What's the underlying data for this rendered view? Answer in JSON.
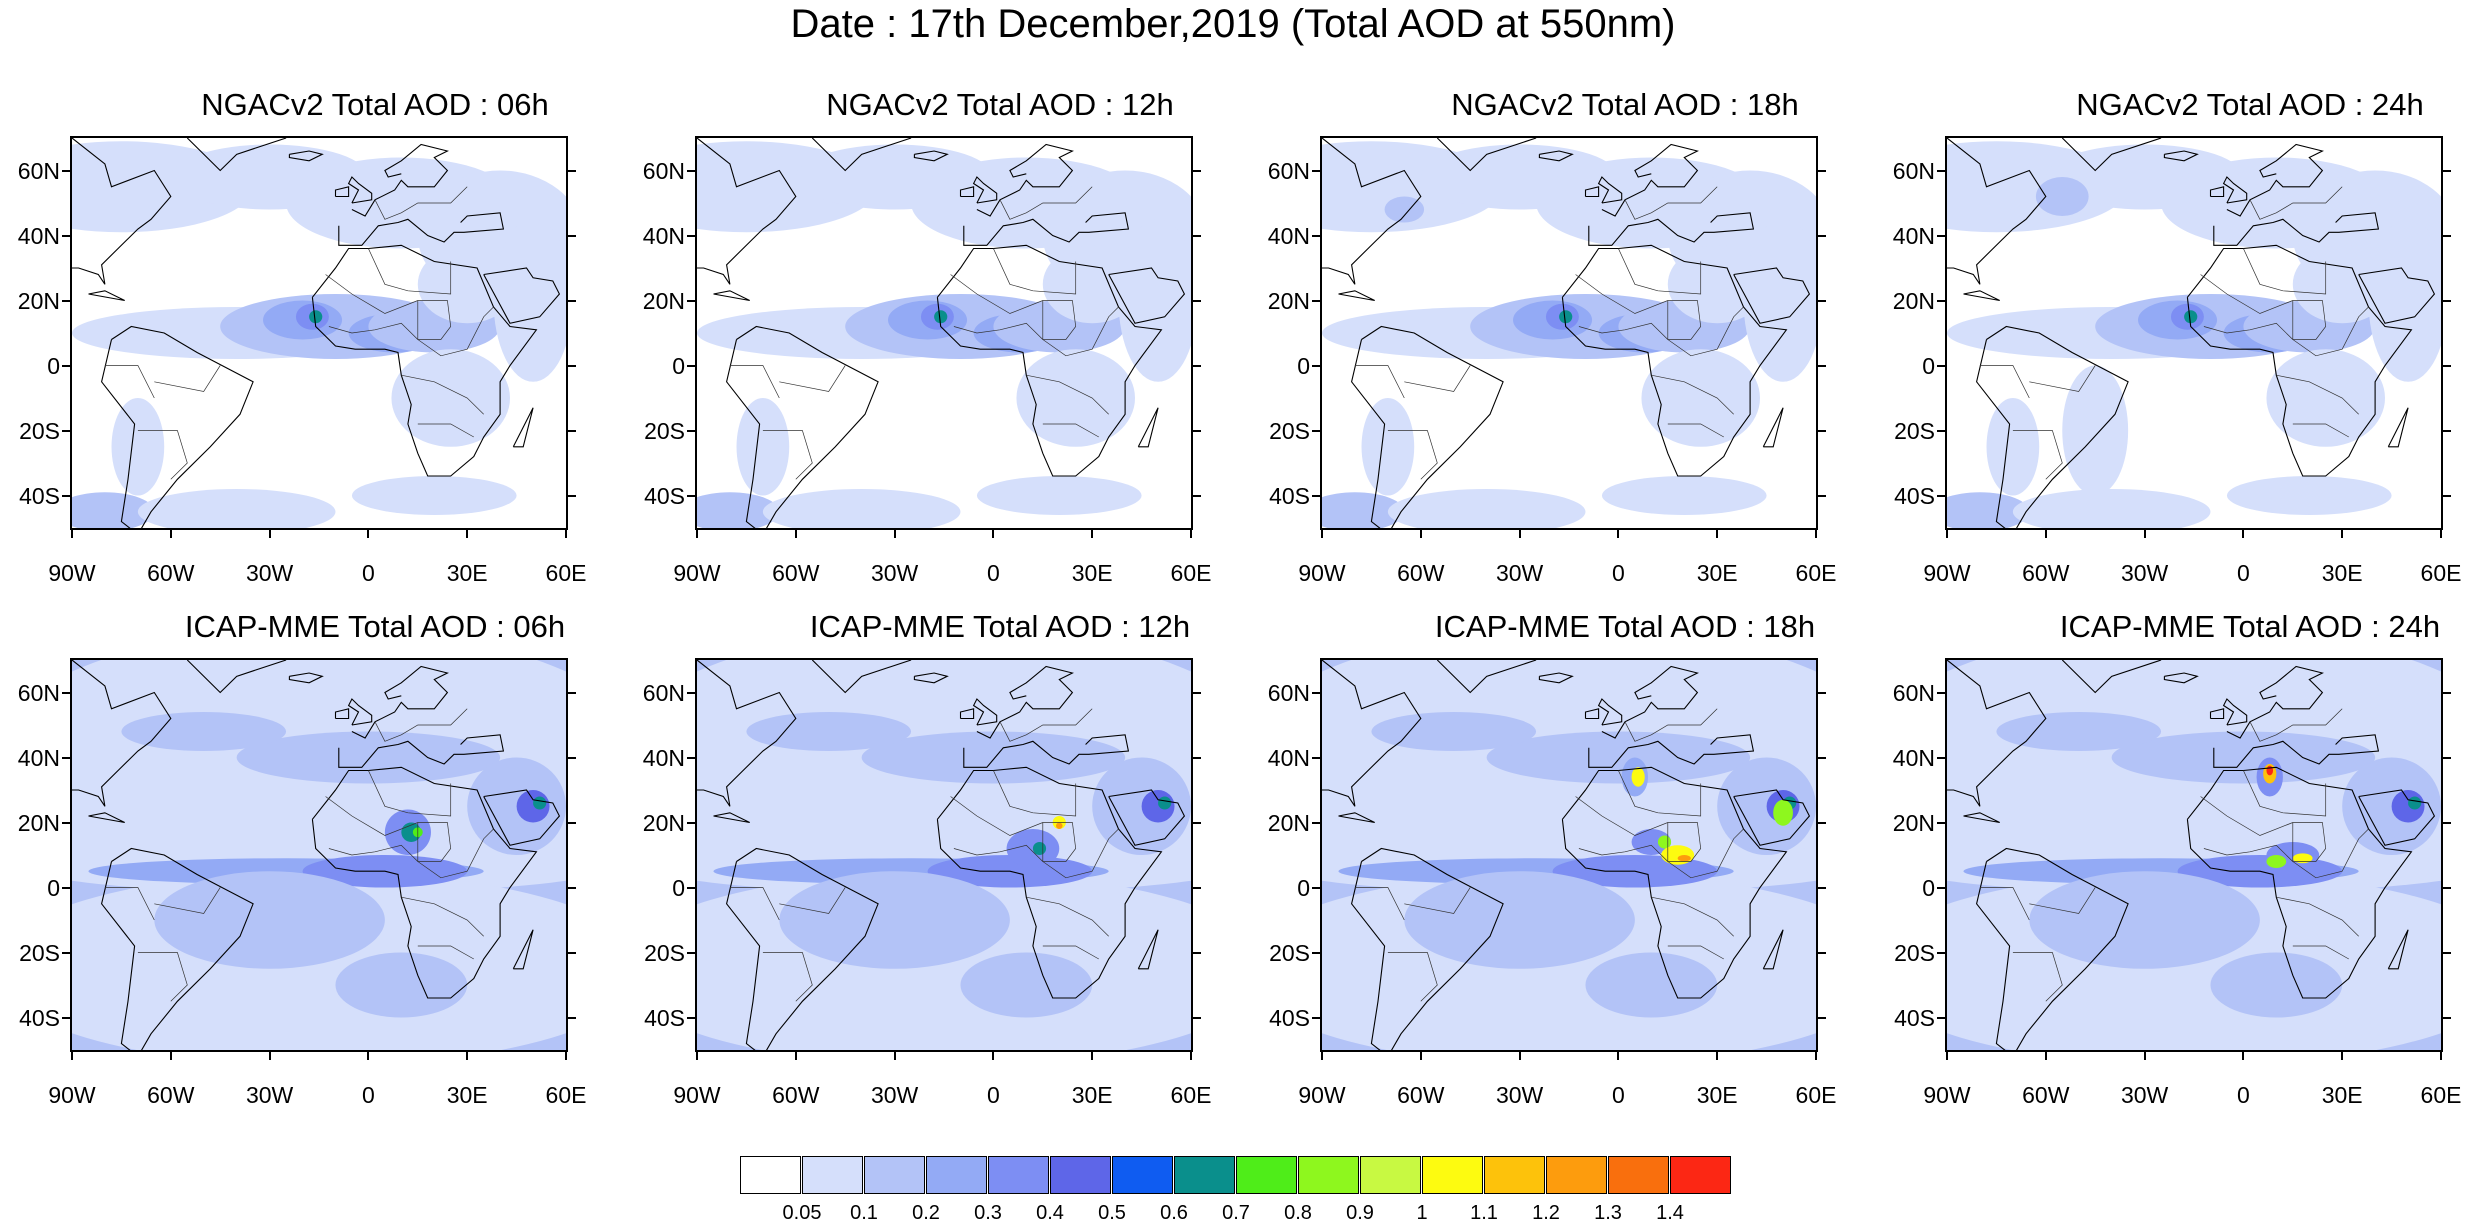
{
  "title": "Date : 17th December,2019 (Total AOD at 550nm)",
  "panels": [
    {
      "title": "NGACv2 Total AOD : 06h",
      "model": "ngac",
      "hour": 6
    },
    {
      "title": "NGACv2 Total AOD : 12h",
      "model": "ngac",
      "hour": 12
    },
    {
      "title": "NGACv2 Total AOD : 18h",
      "model": "ngac",
      "hour": 18
    },
    {
      "title": "NGACv2 Total AOD : 24h",
      "model": "ngac",
      "hour": 24
    },
    {
      "title": "ICAP-MME Total AOD : 06h",
      "model": "icap",
      "hour": 6
    },
    {
      "title": "ICAP-MME Total AOD : 12h",
      "model": "icap",
      "hour": 12
    },
    {
      "title": "ICAP-MME Total AOD : 18h",
      "model": "icap",
      "hour": 18
    },
    {
      "title": "ICAP-MME Total AOD : 24h",
      "model": "icap",
      "hour": 24
    }
  ],
  "lat_labels": [
    "60N",
    "40N",
    "20N",
    "0",
    "20S",
    "40S"
  ],
  "lon_labels": [
    "90W",
    "60W",
    "30W",
    "0",
    "30E",
    "60E"
  ],
  "colorbar": {
    "colors": [
      "#ffffff",
      "#d5dffb",
      "#b3c3f7",
      "#93aaf5",
      "#7d8ef3",
      "#5e66e8",
      "#0f5cf1",
      "#0a8f8c",
      "#4fed19",
      "#8ef71e",
      "#c8f942",
      "#fdfb10",
      "#fdc20b",
      "#fd9c0d",
      "#f96f0d",
      "#fc2714"
    ],
    "labels": [
      "0.05",
      "0.1",
      "0.2",
      "0.3",
      "0.4",
      "0.5",
      "0.6",
      "0.7",
      "0.8",
      "0.9",
      "1",
      "1.1",
      "1.2",
      "1.3",
      "1.4"
    ]
  }
}
